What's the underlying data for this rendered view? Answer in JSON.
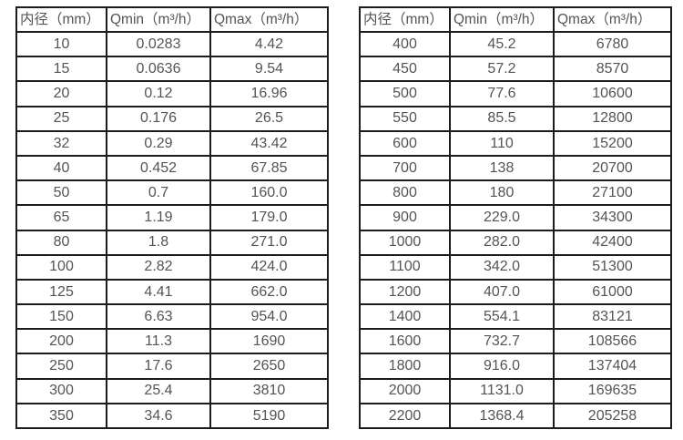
{
  "colors": {
    "background": "#ffffff",
    "border": "#1c1c1c",
    "text": "#545454"
  },
  "left_table": {
    "headers": [
      "内径（mm）",
      "Qmin（m³/h）",
      "Qmax（m³/h）"
    ],
    "rows": [
      [
        "10",
        "0.0283",
        "4.42"
      ],
      [
        "15",
        "0.0636",
        "9.54"
      ],
      [
        "20",
        "0.12",
        "16.96"
      ],
      [
        "25",
        "0.176",
        "26.5"
      ],
      [
        "32",
        "0.29",
        "43.42"
      ],
      [
        "40",
        "0.452",
        "67.85"
      ],
      [
        "50",
        "0.7",
        "160.0"
      ],
      [
        "65",
        "1.19",
        "179.0"
      ],
      [
        "80",
        "1.8",
        "271.0"
      ],
      [
        "100",
        "2.82",
        "424.0"
      ],
      [
        "125",
        "4.41",
        "662.0"
      ],
      [
        "150",
        "6.63",
        "954.0"
      ],
      [
        "200",
        "11.3",
        "1690"
      ],
      [
        "250",
        "17.6",
        "2650"
      ],
      [
        "300",
        "25.4",
        "3810"
      ],
      [
        "350",
        "34.6",
        "5190"
      ]
    ]
  },
  "right_table": {
    "headers": [
      "内径（mm）",
      "Qmin（m³/h）",
      "Qmax（m³/h）"
    ],
    "rows": [
      [
        "400",
        "45.2",
        "6780"
      ],
      [
        "450",
        "57.2",
        "8570"
      ],
      [
        "500",
        "77.6",
        "10600"
      ],
      [
        "550",
        "85.5",
        "12800"
      ],
      [
        "600",
        "110",
        "15200"
      ],
      [
        "700",
        "138",
        "20700"
      ],
      [
        "800",
        "180",
        "27100"
      ],
      [
        "900",
        "229.0",
        "34300"
      ],
      [
        "1000",
        "282.0",
        "42400"
      ],
      [
        "1100",
        "342.0",
        "51300"
      ],
      [
        "1200",
        "407.0",
        "61000"
      ],
      [
        "1400",
        "554.1",
        "83121"
      ],
      [
        "1600",
        "732.7",
        "108566"
      ],
      [
        "1800",
        "916.0",
        "137404"
      ],
      [
        "2000",
        "1131.0",
        "169635"
      ],
      [
        "2200",
        "1368.4",
        "205258"
      ]
    ]
  }
}
